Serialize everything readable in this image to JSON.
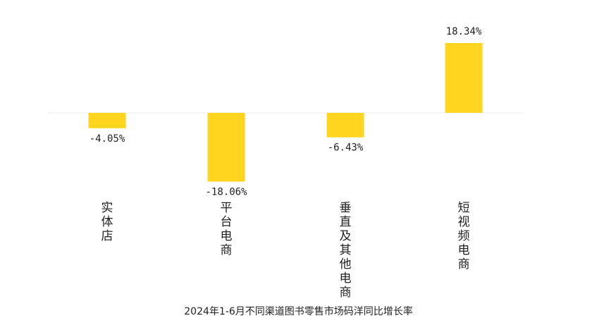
{
  "chart_data": {
    "type": "bar",
    "title": "2024年1-6月不同渠道图书零售市场码洋同比增长率",
    "categories": [
      "实体店",
      "平台电商",
      "垂直及其他电商",
      "短视频电商"
    ],
    "values": [
      -4.05,
      -18.06,
      -6.43,
      18.34
    ],
    "value_labels": [
      "-4.05%",
      "-18.06%",
      "-6.43%",
      "18.34%"
    ],
    "ylim": [
      -18.06,
      18.34
    ],
    "grid": false,
    "legend": "none",
    "colors": {
      "bar": "#FFD51F",
      "zero_line": "#EEEEEE",
      "text": "#222222"
    }
  }
}
